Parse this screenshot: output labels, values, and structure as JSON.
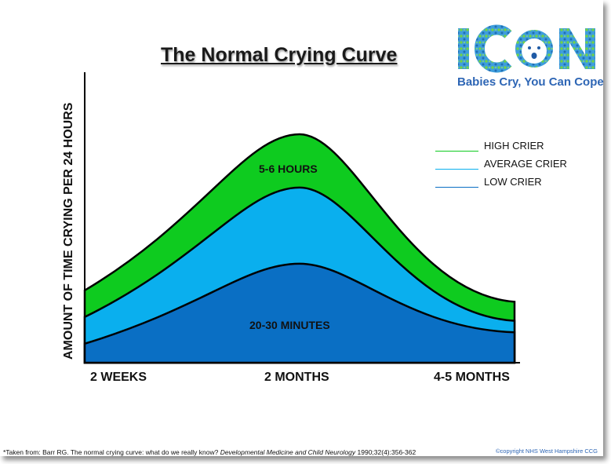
{
  "chart_data": {
    "type": "area",
    "title": "The Normal Crying Curve",
    "ylabel": "AMOUNT OF TIME CRYING PER 24 HOURS",
    "xlabel": "",
    "categories": [
      "2 WEEKS",
      "2 MONTHS",
      "4-5 MONTHS"
    ],
    "x": [
      0,
      1,
      2
    ],
    "series": [
      {
        "name": "HIGH CRIER",
        "color": "#0ecb1f",
        "values": [
          1.9,
          6.0,
          1.6
        ]
      },
      {
        "name": "AVERAGE CRIER",
        "color": "#0aafee",
        "values": [
          1.2,
          4.6,
          1.1
        ]
      },
      {
        "name": "LOW CRIER",
        "color": "#0a6fc4",
        "values": [
          0.5,
          2.6,
          0.8
        ]
      }
    ],
    "annotations": [
      "5-6 HOURS",
      "20-30 MINUTES"
    ],
    "legend_position": "top-right",
    "grid": false
  },
  "logo": {
    "text": "ICON",
    "tagline": "Babies Cry, You Can Cope"
  },
  "footnote": {
    "prefix": "*Taken from: Barr RG. The normal crying curve: what do we really know? ",
    "journal": "Developmental Medicine and Child Neurology",
    "suffix": " 1990;32(4):356-362"
  },
  "copyright": "©copyright NHS West Hampshire CCG"
}
